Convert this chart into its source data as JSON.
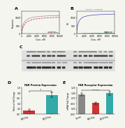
{
  "panel_A": {
    "title": "A",
    "xlabel": "Conc. nM",
    "ylabel": "Response",
    "legend": [
      "GW98854",
      "Progluemide"
    ],
    "legend_colors": [
      "#999999",
      "#cc3333"
    ],
    "curve1_color": "#999999",
    "curve2_color": "#cc3333",
    "ylim": [
      0,
      1400
    ],
    "xlim": [
      0,
      10000
    ]
  },
  "panel_B": {
    "title": "B",
    "subtitle": "Agonist + Antagonist",
    "xlabel": "Conc. nM",
    "ylabel": "RU",
    "legend": [
      "GW98854",
      "GW1000"
    ],
    "legend_colors": [
      "#5555bb",
      "#44aa44"
    ],
    "curve1_color": "#5555bb",
    "curve2_color": "#44aa44",
    "ylim": [
      0,
      1400
    ],
    "xlim": [
      0,
      10000
    ]
  },
  "panel_D": {
    "title": "FAR Protein Expression",
    "xlabel": "Treatment",
    "ylabel": "Relative Fold Change",
    "categories": [
      "GW0-9ug",
      "GW10-9ug"
    ],
    "values": [
      0.15,
      0.72
    ],
    "errors": [
      0.04,
      0.09
    ],
    "bar_colors": [
      "#cc3333",
      "#33aaaa"
    ],
    "ylim": [
      0,
      1.0
    ],
    "pval": "*"
  },
  "panel_E": {
    "title": "FAR Receptor Expression",
    "xlabel": "Treatment",
    "ylabel": "mRNA Fold Change",
    "categories": [
      "Control",
      "GW0-9ug",
      "GW10-9ug"
    ],
    "values": [
      0.92,
      0.52,
      0.98
    ],
    "errors": [
      0.07,
      0.06,
      0.08
    ],
    "bar_colors": [
      "#888888",
      "#cc3333",
      "#33aaaa"
    ],
    "ylim": [
      0,
      1.25
    ],
    "pval": "P=n.s(ns)"
  },
  "bg_color": "#f5f5f0"
}
